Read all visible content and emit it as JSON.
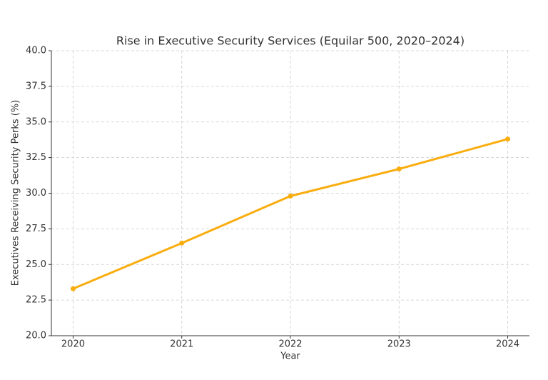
{
  "chart_data": {
    "type": "line",
    "title": "Rise in Executive Security Services (Equilar 500, 2020–2024)",
    "x_label": "Year",
    "y_label": "Executives Receiving Security Perks (%)",
    "x": [
      2020,
      2021,
      2022,
      2023,
      2024
    ],
    "series": [
      {
        "name": "Executives Receiving Security Perks",
        "color": "#f9ad0f",
        "values": [
          23.3,
          26.5,
          29.8,
          31.7,
          33.8
        ]
      }
    ],
    "xlim": [
      2019.8,
      2024.2
    ],
    "xticks": [
      2020,
      2021,
      2022,
      2023,
      2024
    ],
    "ylim": [
      20,
      40
    ],
    "yticks": [
      {
        "value": 20,
        "label": "20.0"
      },
      22.5,
      {
        "value": 25,
        "label": "25.0"
      },
      27.5,
      {
        "value": 30,
        "label": "30.0"
      },
      32.5,
      {
        "value": 35,
        "label": "35.0"
      },
      37.5,
      {
        "value": 40,
        "label": "40.0"
      }
    ],
    "grid": true
  }
}
